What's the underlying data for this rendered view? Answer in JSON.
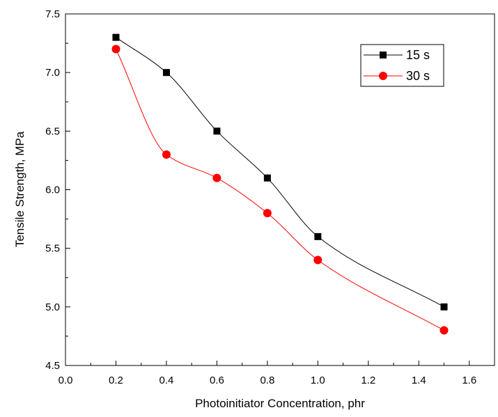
{
  "chart_data": {
    "type": "line",
    "title": "",
    "xlabel": "Photoinitiator Concentration, phr",
    "ylabel": "Tensile Strength, MPa",
    "xlim": [
      0.0,
      1.7
    ],
    "ylim": [
      4.5,
      7.5
    ],
    "x_ticks": [
      "0.0",
      "0.2",
      "0.4",
      "0.6",
      "0.8",
      "1.0",
      "1.2",
      "1.4",
      "1.6"
    ],
    "y_ticks": [
      "4.5",
      "5.0",
      "5.5",
      "6.0",
      "6.5",
      "7.0",
      "7.5"
    ],
    "grid": false,
    "legend_position": "top-right",
    "x": [
      0.2,
      0.4,
      0.6,
      0.8,
      1.0,
      1.5
    ],
    "series": [
      {
        "name": "15 s",
        "marker": "square",
        "color": "#000000",
        "values": [
          7.3,
          7.0,
          6.5,
          6.1,
          5.6,
          5.0
        ]
      },
      {
        "name": "30 s",
        "marker": "circle",
        "color": "#ff0000",
        "values": [
          7.2,
          6.3,
          6.1,
          5.8,
          5.4,
          4.8
        ]
      }
    ]
  }
}
